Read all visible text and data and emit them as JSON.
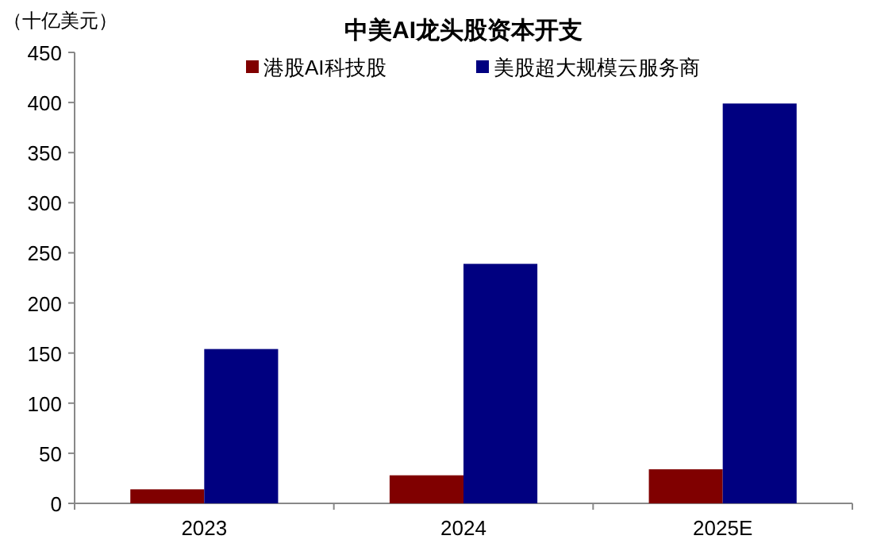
{
  "chart_data": {
    "type": "bar",
    "title": "中美AI龙头股资本开支",
    "ylabel": "（十亿美元）",
    "categories": [
      "2023",
      "2024",
      "2025E"
    ],
    "series": [
      {
        "name": "港股AI科技股",
        "color": "#800000",
        "values": [
          14,
          28,
          34
        ]
      },
      {
        "name": "美股超大规模云服务商",
        "color": "#000080",
        "values": [
          154,
          239,
          399
        ]
      }
    ],
    "ylim": [
      0,
      450
    ],
    "yticks": [
      0,
      50,
      100,
      150,
      200,
      250,
      300,
      350,
      400,
      450
    ],
    "grid": false,
    "legend": "top"
  }
}
